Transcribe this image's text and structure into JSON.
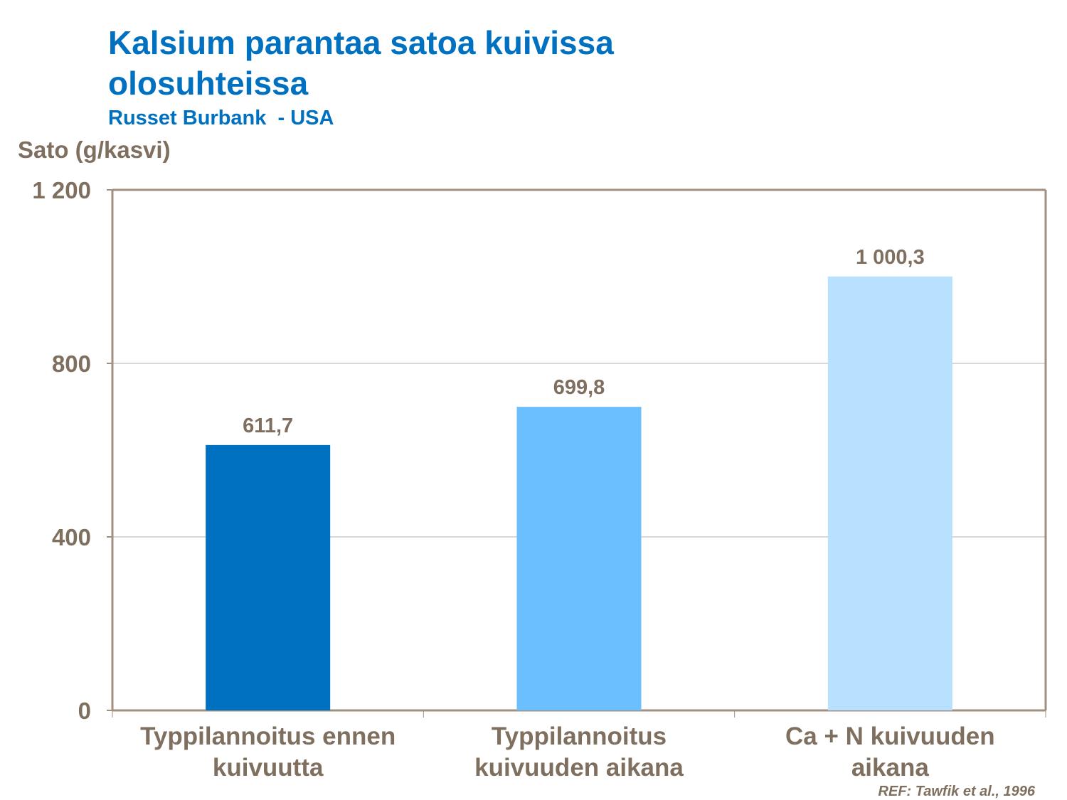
{
  "title": "Kalsium parantaa satoa kuivissa olosuhteissa",
  "subtitle": "Russet Burbank  - USA",
  "reference": "REF: Tawfik et al., 1996",
  "chart_data": {
    "type": "bar",
    "title": "Kalsium parantaa satoa kuivissa olosuhteissa",
    "subtitle": "Russet Burbank  - USA",
    "ylabel": "Sato (g/kasvi)",
    "xlabel": "",
    "ylim": [
      0,
      1200
    ],
    "yticks": [
      0,
      400,
      800,
      1200
    ],
    "ytick_labels": [
      "0",
      "400",
      "800",
      "1 200"
    ],
    "grid": true,
    "categories": [
      [
        "Typpilannoitus ennen",
        "kuivuutta"
      ],
      [
        "Typpilannoitus",
        "kuivuuden aikana"
      ],
      [
        "Ca + N kuivuuden",
        "aikana"
      ]
    ],
    "values": [
      611.7,
      699.8,
      1000.3
    ],
    "value_labels": [
      "611,7",
      "699,8",
      "1 000,3"
    ],
    "colors": [
      "#0070c0",
      "#6bbfff",
      "#b8e0ff"
    ],
    "axis_color": "#a09080",
    "grid_color": "#b0b0b0",
    "text_color": "#7f6f5f"
  }
}
